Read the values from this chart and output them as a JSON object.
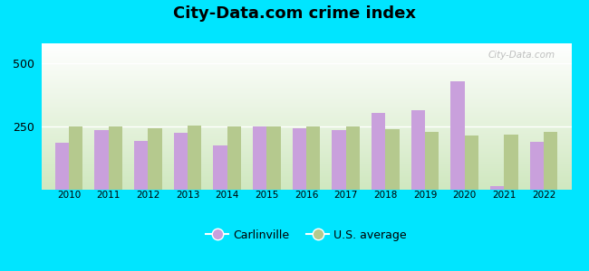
{
  "title": "City-Data.com crime index",
  "years": [
    2010,
    2011,
    2012,
    2013,
    2014,
    2015,
    2016,
    2017,
    2018,
    2019,
    2020,
    2021,
    2022
  ],
  "carlinville": [
    185,
    235,
    195,
    225,
    175,
    250,
    245,
    235,
    305,
    315,
    430,
    15,
    190
  ],
  "us_average": [
    250,
    250,
    245,
    255,
    250,
    250,
    250,
    250,
    240,
    230,
    215,
    220,
    230
  ],
  "carlinville_color": "#c9a0dc",
  "us_average_color": "#b5c98e",
  "background_color": "#00e5ff",
  "bar_width": 0.35,
  "ylim": [
    0,
    580
  ],
  "yticks": [
    250,
    500
  ],
  "title_fontsize": 13,
  "legend_label_carlinville": "Carlinville",
  "legend_label_us": "U.S. average",
  "watermark": "City-Data.com"
}
